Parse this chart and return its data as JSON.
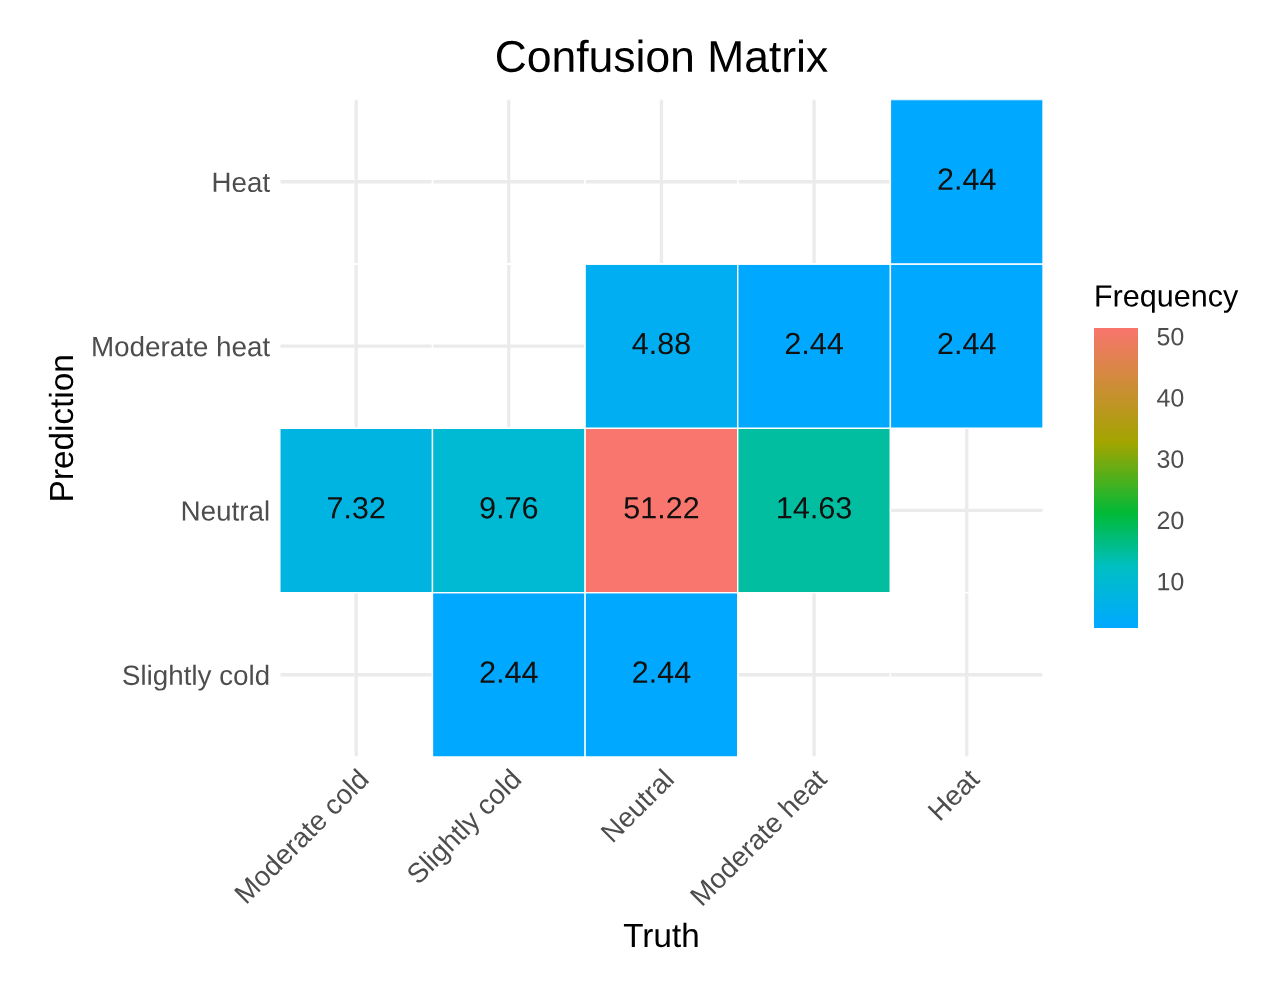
{
  "chart_data": {
    "type": "heatmap",
    "title": "Confusion Matrix",
    "xlabel": "Truth",
    "ylabel": "Prediction",
    "clabel": "Frequency",
    "categories": [
      "Moderate cold",
      "Slightly cold",
      "Neutral",
      "Moderate heat",
      "Heat"
    ],
    "y_categories": [
      "Heat",
      "Moderate heat",
      "Neutral",
      "Slightly cold"
    ],
    "cells": [
      [
        null,
        null,
        null,
        null,
        2.44
      ],
      [
        null,
        null,
        4.88,
        2.44,
        2.44
      ],
      [
        7.32,
        9.76,
        51.22,
        14.63,
        null
      ],
      [
        null,
        2.44,
        2.44,
        null,
        null
      ]
    ],
    "clim": [
      2.44,
      51.22
    ],
    "cticks": [
      10,
      20,
      30,
      40,
      50
    ],
    "data_labels": true,
    "grid": true
  }
}
